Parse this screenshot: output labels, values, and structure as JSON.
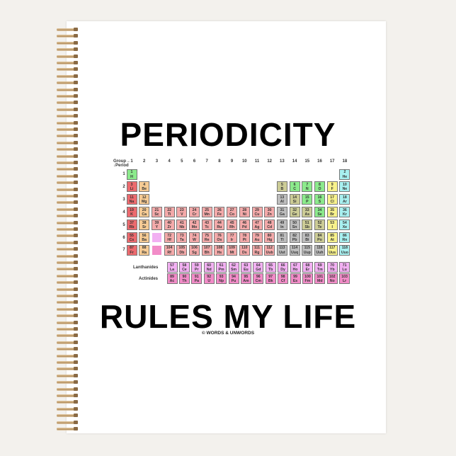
{
  "title_top": "PERIODICITY",
  "title_bottom": "RULES MY LIFE",
  "copyright": "© WORDS & UNWORDS",
  "table": {
    "group_label": "Group→",
    "period_label": "↓Period",
    "lanthanides_label": "Lanthanides",
    "actinides_label": "Actinides",
    "groups": [
      "1",
      "2",
      "3",
      "4",
      "5",
      "6",
      "7",
      "8",
      "9",
      "10",
      "11",
      "12",
      "13",
      "14",
      "15",
      "16",
      "17",
      "18"
    ],
    "periods": [
      "1",
      "2",
      "3",
      "4",
      "5",
      "6",
      "7"
    ],
    "symbols": [
      "H",
      "He",
      "Li",
      "Be",
      "B",
      "C",
      "N",
      "O",
      "F",
      "Ne",
      "Na",
      "Mg",
      "Al",
      "Si",
      "P",
      "S",
      "Cl",
      "Ar",
      "K",
      "Ca",
      "Sc",
      "Ti",
      "V",
      "Cr",
      "Mn",
      "Fe",
      "Co",
      "Ni",
      "Cu",
      "Zn",
      "Ga",
      "Ge",
      "As",
      "Se",
      "Br",
      "Kr",
      "Rb",
      "Sr",
      "Y",
      "Zr",
      "Nb",
      "Mo",
      "Tc",
      "Ru",
      "Rh",
      "Pd",
      "Ag",
      "Cd",
      "In",
      "Sn",
      "Sb",
      "Te",
      "I",
      "Xe",
      "Cs",
      "Ba",
      "La",
      "Ce",
      "Pr",
      "Nd",
      "Pm",
      "Sm",
      "Eu",
      "Gd",
      "Tb",
      "Dy",
      "Ho",
      "Er",
      "Tm",
      "Yb",
      "Lu",
      "Hf",
      "Ta",
      "W",
      "Re",
      "Os",
      "Ir",
      "Pt",
      "Au",
      "Hg",
      "Tl",
      "Pb",
      "Bi",
      "Po",
      "At",
      "Rn",
      "Fr",
      "Ra",
      "Ac",
      "Th",
      "Pa",
      "U",
      "Np",
      "Pu",
      "Am",
      "Cm",
      "Bk",
      "Cf",
      "Es",
      "Fm",
      "Md",
      "No",
      "Lr",
      "Rf",
      "Db",
      "Sg",
      "Bh",
      "Hs",
      "Mt",
      "Ds",
      "Rg",
      "Uub",
      "Uut",
      "Uuq",
      "Uup",
      "Uuh",
      "Uus",
      "Uuo"
    ],
    "categories": {
      "alkali": [
        3,
        11,
        19,
        37,
        55,
        87
      ],
      "alkaline": [
        4,
        12,
        20,
        38,
        56,
        88
      ],
      "nonmetal": [
        1,
        6,
        7,
        8,
        15,
        16,
        34
      ],
      "metalloid": [
        5,
        14,
        32,
        33,
        51,
        52,
        84
      ],
      "post_transition": [
        13,
        31,
        49,
        50,
        81,
        82,
        83,
        113,
        114,
        115,
        116
      ],
      "halogen": [
        9,
        17,
        35,
        53,
        85,
        117
      ],
      "noble": [
        2,
        10,
        18,
        36,
        54,
        86,
        118
      ]
    },
    "colors": {
      "alkali": "#ec6a6e",
      "alkaline": "#f6cb94",
      "transition": "#f4aaaa",
      "post_transition": "#bdbdbd",
      "metalloid": "#cccc96",
      "nonmetal": "#8cea8c",
      "halogen": "#f8f28c",
      "noble": "#a8f0f0",
      "lanthanide": "#f2b0f2",
      "actinide": "#f28cc8"
    }
  }
}
